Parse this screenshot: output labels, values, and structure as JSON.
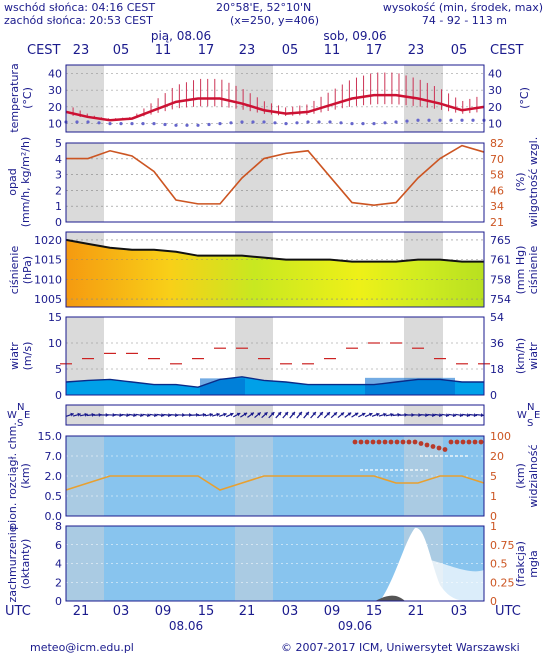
{
  "header": {
    "sunrise": "wschód słońca: 04:16 CEST",
    "sunset": "zachód słońca: 20:53 CEST",
    "coords": "20°58'E, 52°10'N",
    "grid": "(x=250, y=406)",
    "height_label": "wysokość (min, środek, max)",
    "height_values": "74 - 92 - 113 m"
  },
  "top_axis": {
    "tz": "CEST",
    "days": [
      "pią, 08.06",
      "sob, 09.06"
    ],
    "hours": [
      "23",
      "05",
      "11",
      "17",
      "23",
      "05",
      "11",
      "17",
      "23",
      "05"
    ]
  },
  "bottom_axis": {
    "tz": "UTC",
    "days": [
      "08.06",
      "09.06"
    ],
    "hours": [
      "21",
      "03",
      "09",
      "15",
      "21",
      "03",
      "09",
      "15",
      "21",
      "03"
    ]
  },
  "panels": {
    "temperature": {
      "left_label": "temperatura\n(°C)",
      "right_label": "(°C)",
      "ticks": [
        "10",
        "20",
        "30",
        "40"
      ],
      "ylim": [
        5,
        45
      ]
    },
    "precip": {
      "left_label": "opad\n(mm/h, kg/m²/h)",
      "right_label": "(%)\nwilgotność wzgl.",
      "left_ticks": [
        "0",
        "1",
        "2",
        "3",
        "4",
        "5"
      ],
      "right_ticks": [
        "21",
        "34",
        "46",
        "58",
        "70",
        "82"
      ]
    },
    "pressure": {
      "left_label": "ciśnienie\n(hPa)",
      "right_label": "(mm Hg)\nciśnienie",
      "left_ticks": [
        "1005",
        "1010",
        "1015",
        "1020"
      ],
      "right_ticks": [
        "754",
        "758",
        "761",
        "765"
      ]
    },
    "wind": {
      "left_label": "wiatr\n(m/s)",
      "right_label": "(km/h)\nwiatr",
      "left_ticks": [
        "0",
        "5",
        "10",
        "15"
      ],
      "right_ticks": [
        "0",
        "18",
        "36",
        "54"
      ]
    },
    "direction": {
      "left_compass": [
        "N",
        "W",
        "E",
        "S"
      ],
      "right_compass": [
        "N",
        "W",
        "E",
        "S"
      ]
    },
    "clouds_vis": {
      "left_label": "pion. rozciągł. chm.\n(km)",
      "right_label": "(km)\nwidzialność",
      "left_ticks": [
        "0.0",
        "0.5",
        "2.0",
        "7.0",
        "15.0"
      ],
      "right_ticks": [
        "0",
        "1",
        "5",
        "20",
        "100"
      ]
    },
    "cloudcover": {
      "left_label": "zachmurzenie\n(oktanty)",
      "right_label": "(frakcja)\nmgła",
      "left_ticks": [
        "0",
        "2",
        "4",
        "6",
        "8"
      ],
      "right_ticks": [
        "0",
        "0.25",
        "0.5",
        "0.75",
        "1"
      ]
    }
  },
  "footer": {
    "email": "meteo@icm.edu.pl",
    "copyright": "© 2007-2017 ICM, Uniwersytet Warszawski"
  },
  "colors": {
    "frame": "#1a1a8c",
    "night_band": "#d4d4d4",
    "temp_line": "#cc1133",
    "dewpoint": "#6666cc",
    "humidity": "#cc5522",
    "pressure_line": "#111111",
    "wind_fill": "#00a0e8",
    "wind_dark": "#0066cc",
    "gust": "#cc2222",
    "cloud_bg": "#88c4ee",
    "vis_line": "#e8a030"
  },
  "chart_data": [
    {
      "type": "line",
      "title": "temperatura",
      "x_hours_utc": [
        21,
        0,
        3,
        6,
        9,
        12,
        15,
        18,
        21,
        24,
        27,
        30,
        33,
        36,
        39,
        42,
        45,
        48,
        51,
        54
      ],
      "series": [
        {
          "values": [
            17,
            14,
            12,
            13,
            18,
            23,
            25,
            25,
            22,
            18,
            16,
            17,
            21,
            25,
            27,
            27,
            25,
            22,
            18,
            20
          ]
        },
        {
          "values": [
            11,
            11,
            10,
            10,
            10,
            9,
            9,
            10,
            11,
            11,
            10,
            11,
            11,
            10,
            10,
            11,
            12,
            12,
            12,
            12
          ]
        }
      ]
    },
    {
      "type": "line",
      "title": "wilgotność wzgl.",
      "x_hours_utc": [
        21,
        0,
        3,
        6,
        9,
        12,
        15,
        18,
        21,
        24,
        27,
        30,
        33,
        36,
        39,
        42,
        45,
        48,
        51,
        54
      ],
      "series": [
        {
          "values": [
            70,
            70,
            76,
            72,
            60,
            38,
            35,
            35,
            55,
            70,
            74,
            76,
            56,
            36,
            34,
            36,
            55,
            70,
            80,
            75
          ]
        }
      ]
    },
    {
      "type": "area",
      "title": "ciśnienie",
      "x_hours_utc": [
        21,
        0,
        3,
        6,
        9,
        12,
        15,
        18,
        21,
        24,
        27,
        30,
        33,
        36,
        39,
        42,
        45,
        48,
        51,
        54
      ],
      "series": [
        {
          "values": [
            1020,
            1019,
            1018,
            1017.5,
            1017.5,
            1017,
            1016,
            1016,
            1016,
            1015.5,
            1015,
            1015,
            1015,
            1014.5,
            1014.5,
            1014.5,
            1015,
            1015,
            1014.5,
            1014.5
          ]
        }
      ]
    },
    {
      "type": "area",
      "title": "wiatr",
      "x_hours_utc": [
        21,
        0,
        3,
        6,
        9,
        12,
        15,
        18,
        21,
        24,
        27,
        30,
        33,
        36,
        39,
        42,
        45,
        48,
        51,
        54
      ],
      "series": [
        {
          "values": [
            2.5,
            2.8,
            3,
            2.5,
            2,
            2,
            1.5,
            3,
            3.5,
            2.8,
            2.5,
            2,
            2,
            2,
            2,
            2.5,
            3,
            3,
            2.5,
            2.5
          ]
        },
        {
          "values": [
            6,
            7,
            8,
            8,
            7,
            6,
            7,
            9,
            9,
            7,
            6,
            6,
            7,
            9,
            10,
            10,
            9,
            7,
            6,
            6
          ]
        }
      ]
    },
    {
      "type": "line",
      "title": "widzialność",
      "x_hours_utc": [
        21,
        0,
        3,
        6,
        9,
        12,
        15,
        18,
        21,
        24,
        27,
        30,
        33,
        36,
        39,
        42,
        45,
        48,
        51,
        54
      ],
      "series": [
        {
          "values": [
            1.5,
            2,
            2.5,
            2.5,
            2.5,
            2.5,
            2.5,
            1.5,
            2,
            2.5,
            2.5,
            2.5,
            2.5,
            2.5,
            2.5,
            2,
            2,
            2.5,
            2.5,
            2
          ]
        }
      ]
    },
    {
      "type": "area",
      "title": "zachmurzenie",
      "x_hours_utc": [
        21,
        0,
        3,
        6,
        9,
        12,
        15,
        18,
        21,
        24,
        27,
        30,
        33,
        36,
        39,
        42,
        45,
        48,
        51,
        54
      ],
      "series": [
        {
          "values": [
            8,
            8,
            8,
            8,
            8,
            8,
            8,
            8,
            8,
            8,
            8,
            8,
            8,
            8,
            8,
            8,
            8,
            8,
            8,
            8
          ]
        }
      ]
    }
  ]
}
